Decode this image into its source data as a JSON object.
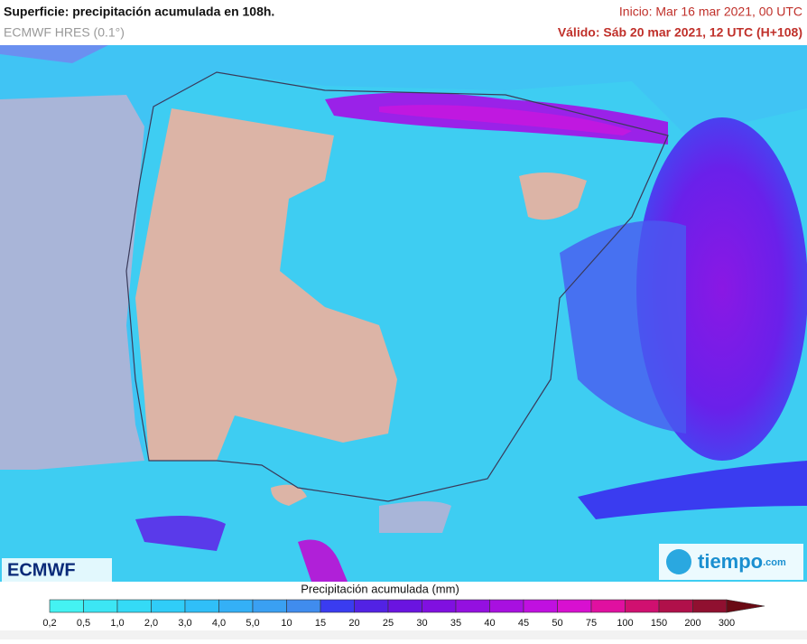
{
  "header": {
    "title": "Superficie: precipitación acumulada en 108h.",
    "subtitle": "ECMWF HRES (0.1°)",
    "init": "Inicio: Mar 16 mar 2021, 00 UTC",
    "valid": "Válido: Sáb 20 mar 2021, 12 UTC (H+108)"
  },
  "logos": {
    "left": "ECMWF",
    "right_main": "tiempo",
    "right_suffix": ".com"
  },
  "legend": {
    "title": "Precipitación acumulada (mm)",
    "labels": [
      "0,2",
      "0,5",
      "1,0",
      "2,0",
      "3,0",
      "4,0",
      "5,0",
      "10",
      "15",
      "20",
      "25",
      "30",
      "35",
      "40",
      "45",
      "50",
      "75",
      "100",
      "150",
      "200",
      "300"
    ],
    "colors": [
      "#44f2f2",
      "#3ce6f4",
      "#34daf6",
      "#30cdf8",
      "#30bff8",
      "#34b0f6",
      "#3aa0f2",
      "#408cee",
      "#3a3cf0",
      "#5222e4",
      "#6a14e0",
      "#8010e0",
      "#9410e0",
      "#a810e0",
      "#c010e0",
      "#d810d0",
      "#e010a0",
      "#d01070",
      "#b0104a",
      "#901030",
      "#6a0a14"
    ]
  }
}
